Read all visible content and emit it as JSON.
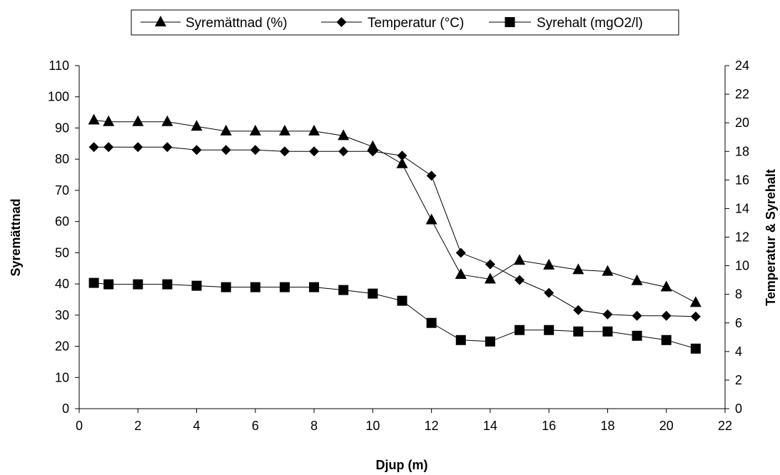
{
  "chart_data": {
    "type": "line",
    "title": "",
    "xlabel": "Djup (m)",
    "ylabel": "Syremättnad",
    "y2label": "Temperatur & Syrehalt",
    "xlim": [
      0,
      22
    ],
    "ylim": [
      0,
      110
    ],
    "y2lim": [
      0,
      24
    ],
    "xticks": [
      0,
      2,
      4,
      6,
      8,
      10,
      12,
      14,
      16,
      18,
      20,
      22
    ],
    "yticks": [
      0,
      10,
      20,
      30,
      40,
      50,
      60,
      70,
      80,
      90,
      100,
      110
    ],
    "y2ticks": [
      0,
      2,
      4,
      6,
      8,
      10,
      12,
      14,
      16,
      18,
      20,
      22,
      24
    ],
    "grid": false,
    "legend_position": "top",
    "x": [
      0.5,
      1,
      2,
      3,
      4,
      5,
      6,
      7,
      8,
      9,
      10,
      11,
      12,
      13,
      14,
      15,
      16,
      17,
      18,
      19,
      20,
      21
    ],
    "series": [
      {
        "name": "Syremättnad (%)",
        "marker": "triangle",
        "axis": "left",
        "values": [
          92.5,
          92,
          92,
          92,
          90.5,
          89,
          89,
          89,
          89,
          87.5,
          84,
          78.5,
          60.5,
          43,
          41.5,
          47.5,
          46,
          44.5,
          44,
          41,
          39,
          34
        ]
      },
      {
        "name": "Temperatur (°C)",
        "marker": "diamond",
        "axis": "right",
        "values": [
          18.3,
          18.3,
          18.3,
          18.3,
          18.1,
          18.1,
          18.1,
          18.0,
          18.0,
          18.0,
          18.0,
          17.7,
          16.3,
          10.9,
          10.1,
          9.0,
          8.1,
          6.9,
          6.6,
          6.5,
          6.5,
          6.45
        ]
      },
      {
        "name": "Syrehalt (mgO2/l)",
        "marker": "square",
        "axis": "right",
        "values": [
          8.8,
          8.7,
          8.7,
          8.7,
          8.6,
          8.5,
          8.5,
          8.5,
          8.5,
          8.3,
          8.05,
          7.55,
          6.0,
          4.8,
          4.7,
          5.5,
          5.5,
          5.4,
          5.4,
          5.1,
          4.8,
          4.2
        ]
      }
    ],
    "colors": {
      "line": "#000000",
      "marker": "#000000",
      "background": "#ffffff"
    }
  }
}
